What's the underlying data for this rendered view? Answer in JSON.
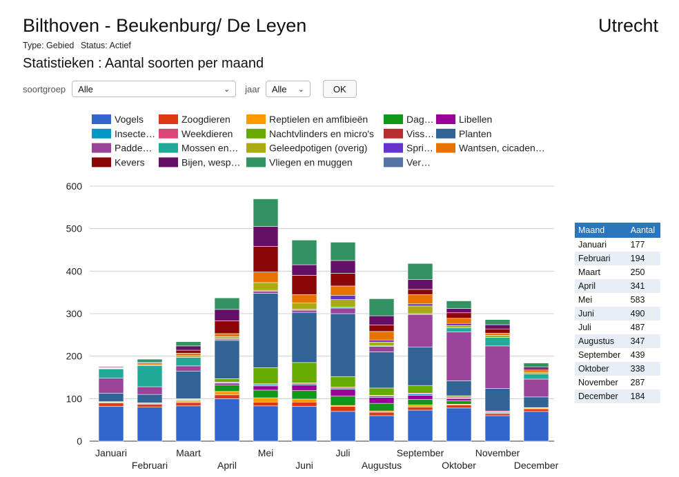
{
  "header": {
    "title": "Bilthoven - Beukenburg/ De Leyen",
    "region": "Utrecht",
    "type_label": "Type: Gebied",
    "status_label": "Status: Actief",
    "subtitle": "Statistieken : Aantal soorten per maand"
  },
  "filters": {
    "soortgroep_label": "soortgroep",
    "soortgroep_value": "Alle",
    "jaar_label": "jaar",
    "jaar_value": "Alle",
    "ok_label": "OK"
  },
  "table": {
    "headers": [
      "Maand",
      "Aantal"
    ],
    "rows": [
      [
        "Januari",
        "177"
      ],
      [
        "Februari",
        "194"
      ],
      [
        "Maart",
        "250"
      ],
      [
        "April",
        "341"
      ],
      [
        "Mei",
        "583"
      ],
      [
        "Juni",
        "490"
      ],
      [
        "Juli",
        "487"
      ],
      [
        "Augustus",
        "347"
      ],
      [
        "September",
        "439"
      ],
      [
        "Oktober",
        "338"
      ],
      [
        "November",
        "287"
      ],
      [
        "December",
        "184"
      ]
    ]
  },
  "chart_data": {
    "type": "bar",
    "stacked": true,
    "categories": [
      "Januari",
      "Februari",
      "Maart",
      "April",
      "Mei",
      "Juni",
      "Juli",
      "Augustus",
      "September",
      "Oktober",
      "November",
      "December"
    ],
    "ylim": [
      0,
      600
    ],
    "yticks": [
      0,
      100,
      200,
      300,
      400,
      500,
      600
    ],
    "grid": true,
    "legend_position": "top",
    "series": [
      {
        "name": "Vogels",
        "color": "#3366cc",
        "values": [
          82,
          80,
          83,
          100,
          83,
          82,
          70,
          60,
          73,
          78,
          60,
          70
        ]
      },
      {
        "name": "Zoogdieren",
        "color": "#dc3912",
        "values": [
          8,
          7,
          8,
          9,
          9,
          10,
          12,
          8,
          7,
          7,
          5,
          6
        ]
      },
      {
        "name": "Reptielen en amfibieën",
        "color": "#ff9900",
        "values": [
          2,
          2,
          3,
          8,
          10,
          7,
          2,
          3,
          5,
          2,
          2,
          2
        ]
      },
      {
        "name": "Dagvlinders",
        "color": "#109618",
        "values": [
          0,
          0,
          2,
          15,
          18,
          20,
          22,
          18,
          13,
          8,
          0,
          0
        ]
      },
      {
        "name": "Libellen",
        "color": "#990099",
        "values": [
          0,
          0,
          0,
          4,
          10,
          13,
          16,
          14,
          10,
          5,
          0,
          0
        ]
      },
      {
        "name": "Insecten (overig)",
        "color": "#0099c6",
        "values": [
          0,
          0,
          1,
          2,
          3,
          3,
          3,
          3,
          3,
          2,
          2,
          0
        ]
      },
      {
        "name": "Weekdieren",
        "color": "#dd4477",
        "values": [
          1,
          1,
          1,
          1,
          2,
          2,
          2,
          2,
          2,
          2,
          2,
          1
        ]
      },
      {
        "name": "Nachtvlinders en micro's",
        "color": "#66aa00",
        "values": [
          0,
          0,
          2,
          8,
          38,
          48,
          25,
          17,
          18,
          3,
          0,
          0
        ]
      },
      {
        "name": "Vissen",
        "color": "#b82e2e",
        "values": [
          0,
          0,
          0,
          0,
          0,
          0,
          0,
          0,
          0,
          0,
          0,
          0
        ]
      },
      {
        "name": "Planten",
        "color": "#316395",
        "values": [
          20,
          20,
          65,
          90,
          175,
          118,
          148,
          85,
          90,
          35,
          53,
          25
        ]
      },
      {
        "name": "Paddenstoelen",
        "color": "#994499",
        "values": [
          35,
          18,
          12,
          3,
          5,
          5,
          13,
          13,
          77,
          115,
          100,
          42
        ]
      },
      {
        "name": "Mossen en korstmossen",
        "color": "#22aa99",
        "values": [
          22,
          50,
          20,
          2,
          2,
          2,
          2,
          2,
          2,
          10,
          20,
          12
        ]
      },
      {
        "name": "Geleedpotigen (overig)",
        "color": "#aaaa11",
        "values": [
          1,
          1,
          4,
          4,
          18,
          15,
          18,
          8,
          18,
          5,
          5,
          4
        ]
      },
      {
        "name": "Sprinkhanen en krekels",
        "color": "#6633cc",
        "values": [
          0,
          0,
          0,
          0,
          0,
          0,
          10,
          5,
          5,
          5,
          0,
          0
        ]
      },
      {
        "name": "Wantsen, cicaden en bladluizen",
        "color": "#e67300",
        "values": [
          1,
          3,
          6,
          7,
          25,
          20,
          22,
          20,
          22,
          12,
          5,
          4
        ]
      },
      {
        "name": "Kevers",
        "color": "#8b0707",
        "values": [
          1,
          2,
          7,
          30,
          60,
          45,
          30,
          15,
          12,
          13,
          10,
          3
        ]
      },
      {
        "name": "Bijen, wespen en mieren",
        "color": "#651067",
        "values": [
          2,
          2,
          10,
          27,
          47,
          25,
          30,
          22,
          23,
          10,
          10,
          5
        ]
      },
      {
        "name": "Vliegen en muggen",
        "color": "#329262",
        "values": [
          1,
          7,
          10,
          27,
          65,
          58,
          43,
          40,
          38,
          18,
          12,
          10
        ]
      },
      {
        "name": "Verstoringen",
        "color": "#5574a6",
        "values": [
          1,
          1,
          1,
          0,
          0,
          0,
          0,
          0,
          0,
          0,
          1,
          1
        ]
      }
    ]
  }
}
